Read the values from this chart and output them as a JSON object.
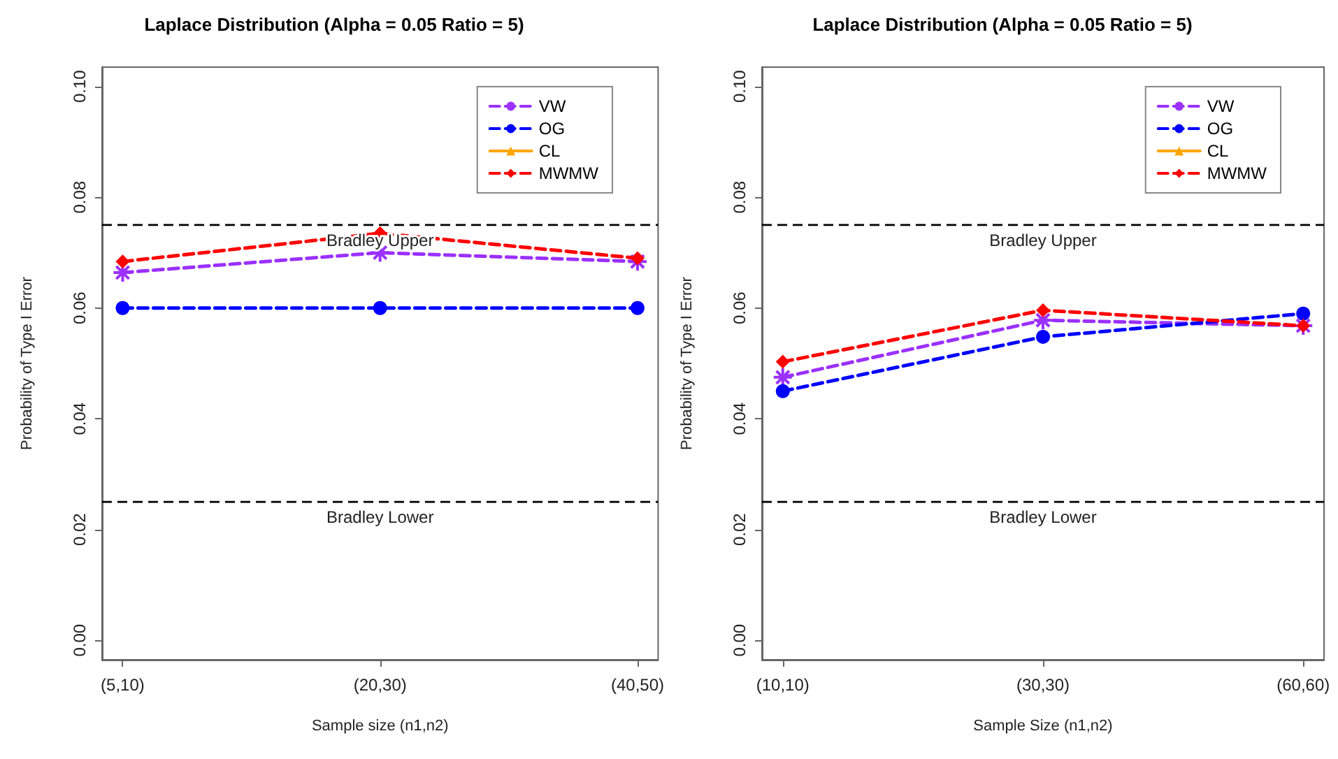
{
  "chart_data": [
    {
      "type": "line",
      "title": "Laplace Distribution (Alpha = 0.05 Ratio = 5)",
      "xlabel": "Sample size (n1,n2)",
      "ylabel": "Probability of Type I Error",
      "categories": [
        "(5,10)",
        "(20,30)",
        "(40,50)"
      ],
      "series": [
        {
          "name": "VW",
          "color": "#9b30ff",
          "marker": "cross",
          "line_style": "dashed",
          "values": [
            0.0664,
            0.07,
            0.0684
          ]
        },
        {
          "name": "OG",
          "color": "#0000ff",
          "marker": "circle",
          "line_style": "dashed",
          "values": [
            0.06,
            0.06,
            0.06
          ]
        },
        {
          "name": "CL",
          "color": "#ffa500",
          "marker": "triangle",
          "line_style": "solid",
          "values": [
            null,
            null,
            null
          ]
        },
        {
          "name": "MWMW",
          "color": "#ff0000",
          "marker": "diamond",
          "line_style": "dashed",
          "values": [
            0.0684,
            0.0735,
            0.069
          ]
        }
      ],
      "ylim": [
        -0.0035,
        0.1035
      ],
      "yticks": [
        {
          "value": 0,
          "label": "0.00"
        },
        {
          "value": 0.02,
          "label": "0.02"
        },
        {
          "value": 0.04,
          "label": "0.04"
        },
        {
          "value": 0.06,
          "label": "0.06"
        },
        {
          "value": 0.08,
          "label": "0.08"
        },
        {
          "value": 0.1,
          "label": "0.10"
        }
      ],
      "ref_lines": [
        {
          "axis": "y",
          "value": 0.075,
          "label": "Bradley Upper",
          "color": "#000000",
          "line_style": "dashed"
        },
        {
          "axis": "y",
          "value": 0.025,
          "label": "Bradley Lower",
          "color": "#000000",
          "line_style": "dashed"
        }
      ],
      "grid": false,
      "legend": "top right"
    },
    {
      "type": "line",
      "title": "Laplace Distribution (Alpha = 0.05 Ratio = 5)",
      "xlabel": "Sample Size (n1,n2)",
      "ylabel": "Probability of Type I Error",
      "categories": [
        "(10,10)",
        "(30,30)",
        "(60,60)"
      ],
      "series": [
        {
          "name": "VW",
          "color": "#9b30ff",
          "marker": "cross",
          "line_style": "dashed",
          "values": [
            0.0475,
            0.0578,
            0.0568
          ]
        },
        {
          "name": "OG",
          "color": "#0000ff",
          "marker": "circle",
          "line_style": "dashed",
          "values": [
            0.045,
            0.0548,
            0.059
          ]
        },
        {
          "name": "CL",
          "color": "#ffa500",
          "marker": "triangle",
          "line_style": "solid",
          "values": [
            null,
            null,
            null
          ]
        },
        {
          "name": "MWMW",
          "color": "#ff0000",
          "marker": "diamond",
          "line_style": "dashed",
          "values": [
            0.0503,
            0.0596,
            0.0568
          ]
        }
      ],
      "ylim": [
        -0.0035,
        0.1035
      ],
      "yticks": [
        {
          "value": 0,
          "label": "0.00"
        },
        {
          "value": 0.02,
          "label": "0.02"
        },
        {
          "value": 0.04,
          "label": "0.04"
        },
        {
          "value": 0.06,
          "label": "0.06"
        },
        {
          "value": 0.08,
          "label": "0.08"
        },
        {
          "value": 0.1,
          "label": "0.10"
        }
      ],
      "ref_lines": [
        {
          "axis": "y",
          "value": 0.075,
          "label": "Bradley Upper",
          "color": "#000000",
          "line_style": "dashed"
        },
        {
          "axis": "y",
          "value": 0.025,
          "label": "Bradley Lower",
          "color": "#000000",
          "line_style": "dashed"
        }
      ],
      "grid": false,
      "legend": "top right"
    }
  ]
}
